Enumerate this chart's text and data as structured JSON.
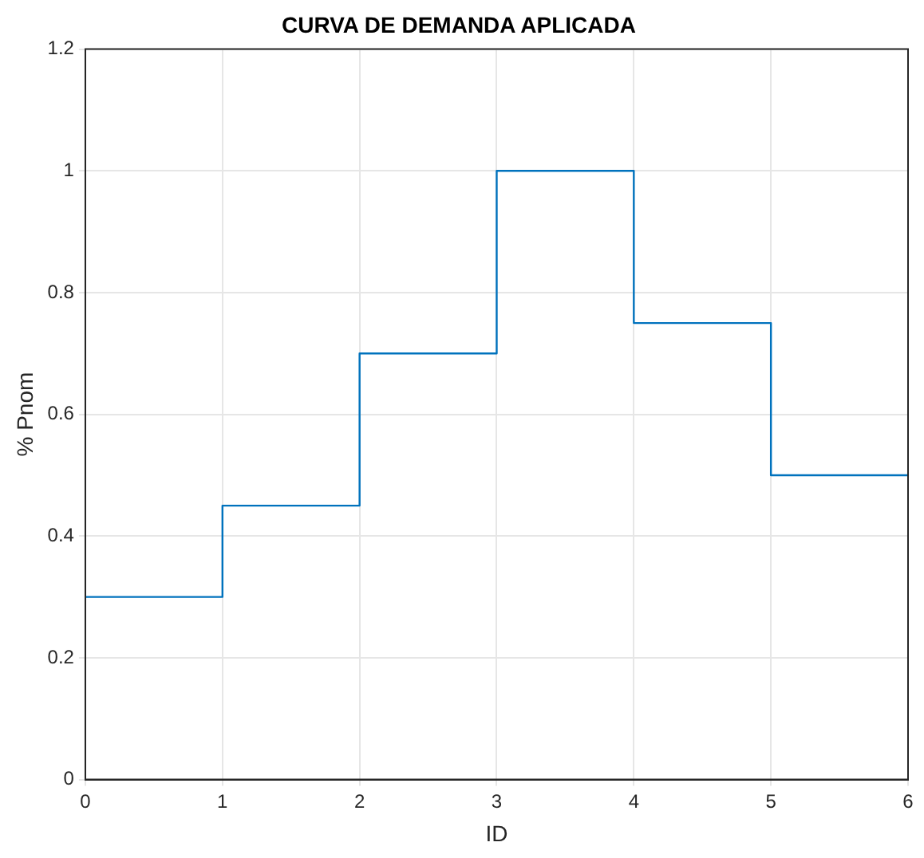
{
  "chart_data": {
    "type": "step",
    "title": "CURVA DE DEMANDA APLICADA",
    "xlabel": "ID",
    "ylabel": "% Pnom",
    "x": [
      0,
      1,
      2,
      3,
      4,
      5,
      6
    ],
    "series": [
      {
        "color": "#0072bd",
        "values": [
          0.3,
          0.45,
          0.7,
          1,
          0.75,
          0.5,
          0.5
        ]
      }
    ],
    "xlim": [
      0,
      6
    ],
    "xticks": [
      0,
      1,
      2,
      3,
      4,
      5,
      6
    ],
    "ylim": [
      0,
      1.2
    ],
    "yticks": [
      0,
      0.2,
      0.4,
      0.6,
      0.8,
      1,
      1.2
    ],
    "grid": true,
    "legend": false,
    "marker": "none",
    "line_style": "solid"
  }
}
